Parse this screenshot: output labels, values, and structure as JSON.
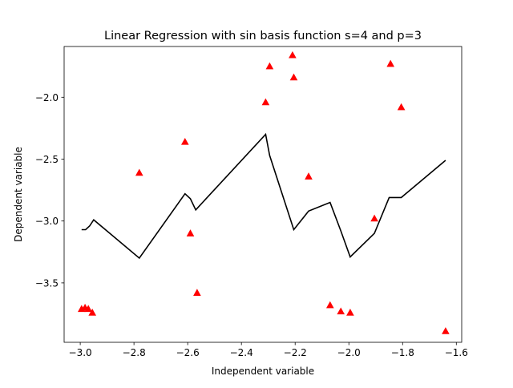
{
  "chart_data": {
    "type": "scatter",
    "title": "Linear Regression with sin basis function s=4 and p=3",
    "xlabel": "Independent variable",
    "ylabel": "Dependent variable",
    "xlim": [
      -3.06,
      -1.58
    ],
    "ylim": [
      -3.98,
      -1.59
    ],
    "grid": false,
    "xticks": [
      {
        "value": -3.0,
        "label": "−3.0"
      },
      {
        "value": -2.8,
        "label": "−2.8"
      },
      {
        "value": -2.6,
        "label": "−2.6"
      },
      {
        "value": -2.4,
        "label": "−2.4"
      },
      {
        "value": -2.2,
        "label": "−2.2"
      },
      {
        "value": -2.0,
        "label": "−2.0"
      },
      {
        "value": -1.8,
        "label": "−1.8"
      },
      {
        "value": -1.6,
        "label": "−1.6"
      }
    ],
    "yticks": [
      {
        "value": -3.5,
        "label": "−3.5"
      },
      {
        "value": -3.0,
        "label": "−3.0"
      },
      {
        "value": -2.5,
        "label": "−2.5"
      },
      {
        "value": -2.0,
        "label": "−2.0"
      }
    ],
    "series": [
      {
        "kind": "scatter",
        "marker": "triangle",
        "color": "#ff0000",
        "points": [
          {
            "x": -2.995,
            "y": -3.71
          },
          {
            "x": -2.982,
            "y": -3.7
          },
          {
            "x": -2.97,
            "y": -3.71
          },
          {
            "x": -2.955,
            "y": -3.74
          },
          {
            "x": -2.78,
            "y": -2.61
          },
          {
            "x": -2.61,
            "y": -2.36
          },
          {
            "x": -2.59,
            "y": -3.1
          },
          {
            "x": -2.565,
            "y": -3.58
          },
          {
            "x": -2.31,
            "y": -2.04
          },
          {
            "x": -2.295,
            "y": -1.75
          },
          {
            "x": -2.21,
            "y": -1.66
          },
          {
            "x": -2.205,
            "y": -1.84
          },
          {
            "x": -2.15,
            "y": -2.64
          },
          {
            "x": -2.07,
            "y": -3.68
          },
          {
            "x": -2.03,
            "y": -3.73
          },
          {
            "x": -1.995,
            "y": -3.74
          },
          {
            "x": -1.905,
            "y": -2.98
          },
          {
            "x": -1.845,
            "y": -1.73
          },
          {
            "x": -1.805,
            "y": -2.08
          },
          {
            "x": -1.64,
            "y": -3.89
          }
        ]
      },
      {
        "kind": "line",
        "color": "#000000",
        "points": [
          {
            "x": -2.995,
            "y": -3.07
          },
          {
            "x": -2.98,
            "y": -3.07
          },
          {
            "x": -2.965,
            "y": -3.04
          },
          {
            "x": -2.95,
            "y": -2.99
          },
          {
            "x": -2.78,
            "y": -3.3
          },
          {
            "x": -2.61,
            "y": -2.78
          },
          {
            "x": -2.59,
            "y": -2.82
          },
          {
            "x": -2.57,
            "y": -2.91
          },
          {
            "x": -2.31,
            "y": -2.3
          },
          {
            "x": -2.295,
            "y": -2.47
          },
          {
            "x": -2.205,
            "y": -3.07
          },
          {
            "x": -2.15,
            "y": -2.92
          },
          {
            "x": -2.07,
            "y": -2.85
          },
          {
            "x": -2.03,
            "y": -3.08
          },
          {
            "x": -1.995,
            "y": -3.29
          },
          {
            "x": -1.905,
            "y": -3.1
          },
          {
            "x": -1.85,
            "y": -2.81
          },
          {
            "x": -1.805,
            "y": -2.81
          },
          {
            "x": -1.64,
            "y": -2.51
          }
        ]
      }
    ]
  }
}
